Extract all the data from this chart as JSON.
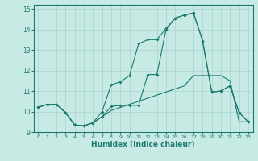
{
  "xlabel": "Humidex (Indice chaleur)",
  "ylabel": "",
  "xlim": [
    -0.5,
    23.5
  ],
  "ylim": [
    9,
    15.2
  ],
  "yticks": [
    9,
    10,
    11,
    12,
    13,
    14,
    15
  ],
  "xticks": [
    0,
    1,
    2,
    3,
    4,
    5,
    6,
    7,
    8,
    9,
    10,
    11,
    12,
    13,
    14,
    15,
    16,
    17,
    18,
    19,
    20,
    21,
    22,
    23
  ],
  "bg_color": "#c8eae5",
  "grid_color": "#a8d4ce",
  "line_color": "#1a7a6e",
  "line1_x": [
    0,
    1,
    2,
    3,
    4,
    5,
    6,
    7,
    8,
    9,
    10,
    11,
    12,
    13,
    14,
    15,
    16,
    17,
    18,
    19,
    20,
    21,
    22,
    23
  ],
  "line1_y": [
    10.2,
    10.35,
    10.35,
    9.95,
    9.35,
    9.3,
    9.45,
    9.75,
    10.25,
    10.3,
    10.3,
    10.3,
    11.8,
    11.8,
    14.0,
    14.55,
    14.7,
    14.8,
    13.45,
    10.95,
    11.0,
    11.25,
    9.95,
    9.5
  ],
  "line2_x": [
    0,
    1,
    2,
    3,
    4,
    5,
    6,
    7,
    8,
    9,
    10,
    11,
    12,
    13,
    14,
    15,
    16,
    17,
    18,
    19,
    20,
    21,
    22,
    23
  ],
  "line2_y": [
    10.2,
    10.35,
    10.35,
    9.95,
    9.35,
    9.3,
    9.45,
    10.0,
    11.3,
    11.45,
    11.75,
    13.3,
    13.5,
    13.5,
    14.05,
    14.55,
    14.7,
    14.8,
    13.45,
    10.95,
    11.0,
    11.25,
    9.95,
    9.5
  ],
  "line3_x": [
    0,
    1,
    2,
    3,
    4,
    5,
    6,
    7,
    8,
    9,
    10,
    11,
    12,
    13,
    14,
    15,
    16,
    17,
    18,
    19,
    20,
    21,
    22,
    23
  ],
  "line3_y": [
    10.2,
    10.35,
    10.35,
    9.95,
    9.35,
    9.3,
    9.45,
    9.75,
    10.05,
    10.2,
    10.35,
    10.5,
    10.65,
    10.8,
    10.95,
    11.1,
    11.25,
    11.75,
    11.75,
    11.75,
    11.75,
    11.5,
    9.5,
    9.5
  ]
}
